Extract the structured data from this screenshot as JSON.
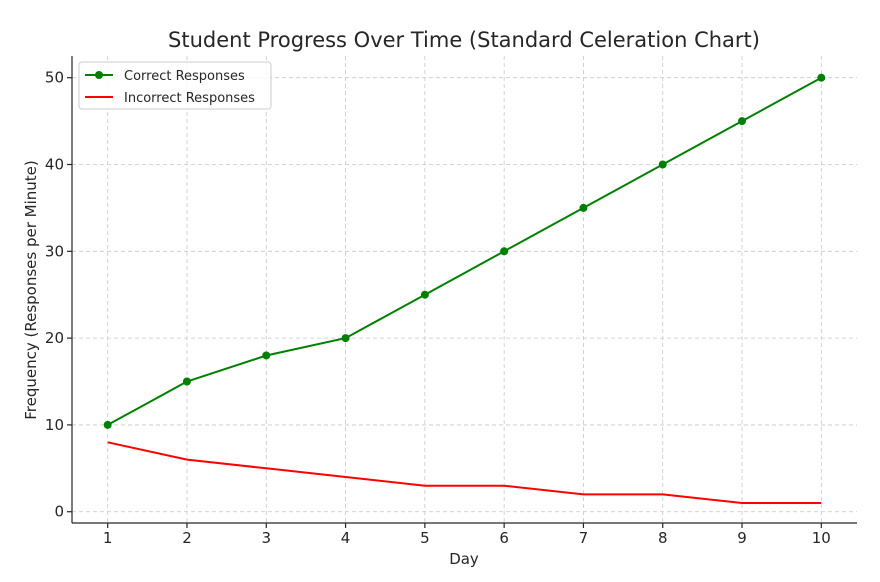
{
  "chart_data": {
    "type": "line",
    "title": "Student Progress Over Time (Standard Celeration Chart)",
    "xlabel": "Day",
    "ylabel": "Frequency (Responses per Minute)",
    "x": [
      1,
      2,
      3,
      4,
      5,
      6,
      7,
      8,
      9,
      10
    ],
    "xlim": [
      0.55,
      10.45
    ],
    "ylim": [
      -1.3,
      52.5
    ],
    "yticks": [
      0,
      10,
      20,
      30,
      40,
      50
    ],
    "grid": true,
    "legend_position": "top-left",
    "series": [
      {
        "name": "Correct Responses",
        "color": "#008000",
        "marker": "circle",
        "values": [
          10,
          15,
          18,
          20,
          25,
          30,
          35,
          40,
          45,
          50
        ]
      },
      {
        "name": "Incorrect Responses",
        "color": "#ff0000",
        "marker": "none",
        "values": [
          8,
          6,
          5,
          4,
          3,
          3,
          2,
          2,
          1,
          1
        ]
      }
    ]
  }
}
